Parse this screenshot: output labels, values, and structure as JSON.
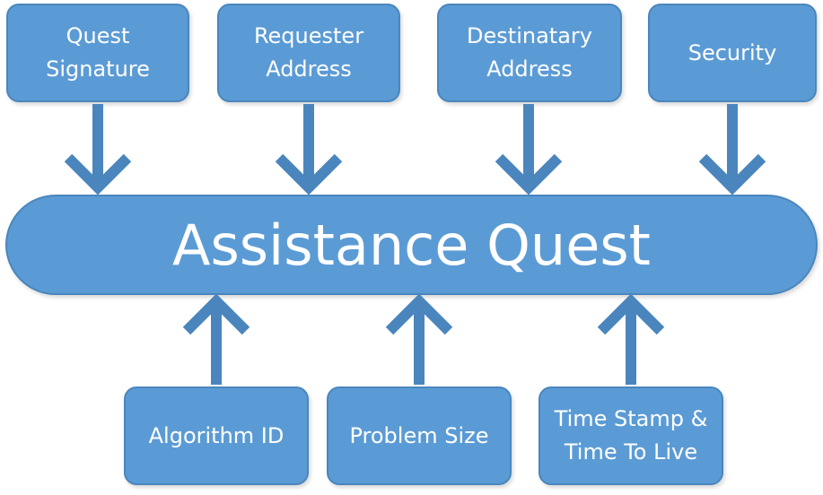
{
  "center": {
    "label": "Assistance Quest"
  },
  "top_boxes": [
    {
      "label": "Quest\nSignature"
    },
    {
      "label": "Requester\nAddress"
    },
    {
      "label": "Destinatary\nAddress"
    },
    {
      "label": "Security"
    }
  ],
  "bottom_boxes": [
    {
      "label": "Algorithm ID"
    },
    {
      "label": "Problem Size"
    },
    {
      "label": "Time Stamp &\nTime To Live"
    }
  ],
  "colors": {
    "box_fill": "#5b9bd5",
    "box_border": "#4a86bd",
    "arrow": "#4a86bd",
    "text": "#ffffff"
  }
}
